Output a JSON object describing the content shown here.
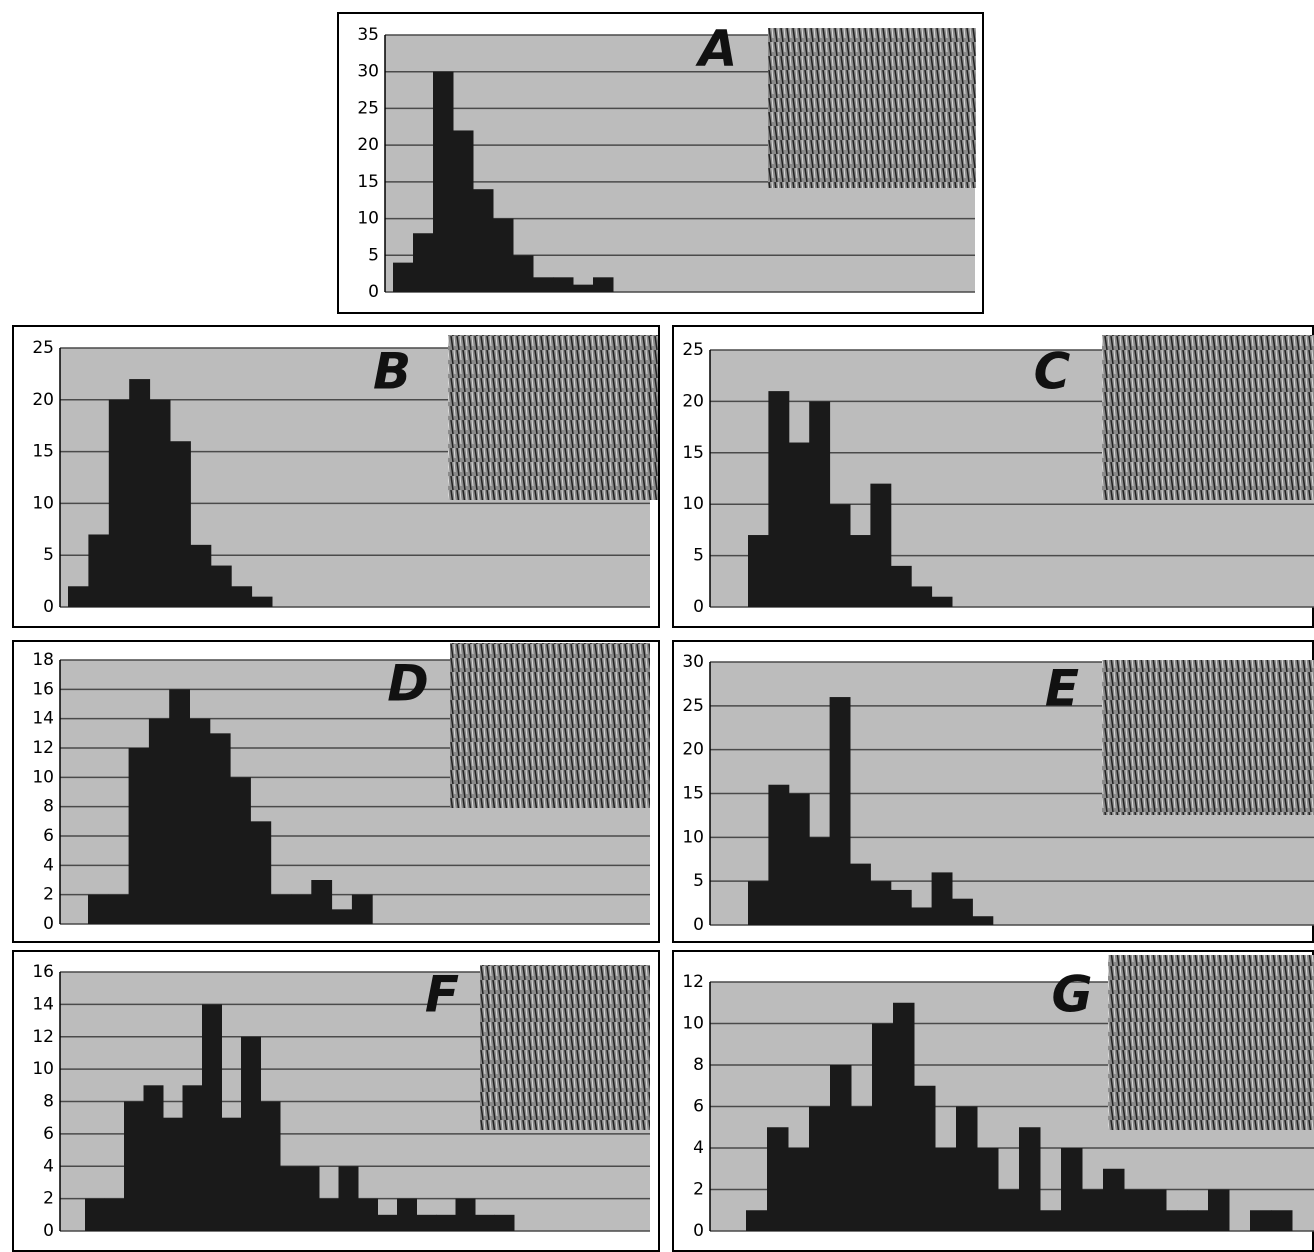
{
  "chart_data": [
    {
      "type": "bar",
      "label": "A",
      "color": "#1a1a1a",
      "grid": true,
      "ylim": [
        0,
        35
      ],
      "yticks": [
        0,
        5,
        10,
        15,
        20,
        25,
        30,
        35
      ],
      "categories": [
        null,
        null,
        null,
        null,
        null,
        null,
        null,
        null,
        null,
        null,
        null
      ],
      "values": [
        4,
        8,
        30,
        22,
        14,
        10,
        5,
        2,
        2,
        1,
        2
      ]
    },
    {
      "type": "bar",
      "label": "B",
      "color": "#1a1a1a",
      "grid": true,
      "ylim": [
        0,
        25
      ],
      "yticks": [
        0,
        5,
        10,
        15,
        20,
        25
      ],
      "categories": [
        null,
        null,
        null,
        null,
        null,
        null,
        null,
        null,
        null,
        null
      ],
      "values": [
        2,
        7,
        20,
        22,
        20,
        16,
        6,
        4,
        2,
        1
      ]
    },
    {
      "type": "bar",
      "label": "C",
      "color": "#1a1a1a",
      "grid": true,
      "ylim": [
        0,
        25
      ],
      "yticks": [
        0,
        5,
        10,
        15,
        20,
        25
      ],
      "categories": [
        null,
        null,
        null,
        null,
        null,
        null,
        null,
        null,
        null,
        null
      ],
      "values": [
        7,
        21,
        16,
        20,
        10,
        7,
        12,
        4,
        2,
        1
      ]
    },
    {
      "type": "bar",
      "label": "D",
      "color": "#1a1a1a",
      "grid": true,
      "ylim": [
        0,
        18
      ],
      "yticks": [
        0,
        2,
        4,
        6,
        8,
        10,
        12,
        14,
        16,
        18
      ],
      "categories": [
        null,
        null,
        null,
        null,
        null,
        null,
        null,
        null,
        null,
        null,
        null,
        null,
        null,
        null
      ],
      "values": [
        2,
        2,
        12,
        14,
        16,
        14,
        13,
        10,
        7,
        2,
        2,
        3,
        1,
        2
      ]
    },
    {
      "type": "bar",
      "label": "E",
      "color": "#1a1a1a",
      "grid": true,
      "ylim": [
        0,
        30
      ],
      "yticks": [
        0,
        5,
        10,
        15,
        20,
        25,
        30
      ],
      "categories": [
        null,
        null,
        null,
        null,
        null,
        null,
        null,
        null,
        null,
        null,
        null,
        null
      ],
      "values": [
        5,
        16,
        15,
        10,
        26,
        7,
        5,
        4,
        2,
        6,
        3,
        1
      ]
    },
    {
      "type": "bar",
      "label": "F",
      "color": "#1a1a1a",
      "grid": true,
      "ylim": [
        0,
        16
      ],
      "yticks": [
        0,
        2,
        4,
        6,
        8,
        10,
        12,
        14,
        16
      ],
      "categories": [
        null,
        null,
        null,
        null,
        null,
        null,
        null,
        null,
        null,
        null,
        null,
        null,
        null,
        null,
        null,
        null,
        null,
        null,
        null,
        null,
        null,
        null
      ],
      "values": [
        2,
        2,
        8,
        9,
        7,
        9,
        14,
        7,
        12,
        8,
        4,
        4,
        2,
        4,
        2,
        1,
        2,
        1,
        1,
        2,
        1,
        1
      ]
    },
    {
      "type": "bar",
      "label": "G",
      "color": "#1a1a1a",
      "grid": true,
      "ylim": [
        0,
        12
      ],
      "yticks": [
        0,
        2,
        4,
        6,
        8,
        10,
        12
      ],
      "categories": [
        null,
        null,
        null,
        null,
        null,
        null,
        null,
        null,
        null,
        null,
        null,
        null,
        null,
        null,
        null,
        null,
        null,
        null,
        null,
        null,
        null,
        null,
        null,
        null,
        null,
        null
      ],
      "values": [
        1,
        5,
        4,
        6,
        8,
        6,
        10,
        11,
        7,
        4,
        6,
        4,
        2,
        5,
        1,
        4,
        2,
        3,
        2,
        2,
        1,
        1,
        2,
        0,
        1,
        1
      ]
    }
  ]
}
